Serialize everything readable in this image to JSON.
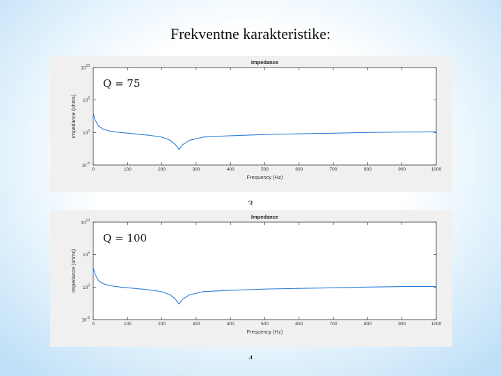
{
  "slide": {
    "title": "Frekventne karakteristike:",
    "figure_numbers": [
      "3",
      "4"
    ]
  },
  "colors": {
    "line": "#2b7bd8",
    "axes": "#333333",
    "panel_background": "#f0f0f0",
    "plot_background": "#ffffff",
    "slide_background": "#bfe0f7"
  },
  "chart_data": [
    {
      "type": "line",
      "title": "Impedance",
      "xlabel": "Frequency (Hz)",
      "ylabel": "Impedance (ohms)",
      "annotation": {
        "text": "Q = 75"
      },
      "xlim": [
        0,
        1000
      ],
      "ylim_log10": [
        -5,
        10
      ],
      "y_scale": "log",
      "grid": false,
      "x_ticks": [
        0,
        100,
        200,
        300,
        400,
        500,
        600,
        700,
        800,
        900,
        1000
      ],
      "y_tick_exponents": [
        10,
        5,
        0,
        -5
      ],
      "series": [
        {
          "x": [
            0,
            5,
            15,
            30,
            50,
            80,
            120,
            160,
            200,
            225,
            240,
            250,
            260,
            280,
            320,
            400,
            500,
            600,
            700,
            800,
            900,
            1000
          ],
          "y": [
            1000,
            100,
            10,
            3.16,
            1.58,
            1,
            0.63,
            0.4,
            0.2,
            0.063,
            0.013,
            0.0025,
            0.0126,
            0.063,
            0.2,
            0.32,
            0.5,
            0.63,
            0.79,
            1,
            1.2,
            1.26
          ]
        }
      ]
    },
    {
      "type": "line",
      "title": "Impedance",
      "xlabel": "Frequency (Hz)",
      "ylabel": "Impedance (ohms)",
      "annotation": {
        "text": "Q = 100"
      },
      "xlim": [
        0,
        1000
      ],
      "ylim_log10": [
        -5,
        10
      ],
      "y_scale": "log",
      "grid": false,
      "x_ticks": [
        0,
        100,
        200,
        300,
        400,
        500,
        600,
        700,
        800,
        900,
        1000
      ],
      "y_tick_exponents": [
        10,
        5,
        0,
        -5
      ],
      "series": [
        {
          "x": [
            0,
            5,
            15,
            30,
            50,
            80,
            120,
            160,
            200,
            225,
            240,
            250,
            260,
            280,
            320,
            400,
            500,
            600,
            700,
            800,
            900,
            1000
          ],
          "y": [
            1000,
            100,
            10,
            3.16,
            1.58,
            1,
            0.63,
            0.4,
            0.2,
            0.063,
            0.013,
            0.0025,
            0.0126,
            0.063,
            0.2,
            0.32,
            0.5,
            0.63,
            0.79,
            1,
            1.2,
            1.26
          ]
        }
      ]
    }
  ]
}
